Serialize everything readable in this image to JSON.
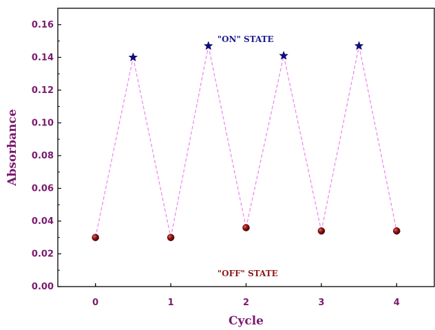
{
  "chart_data": {
    "type": "scatter",
    "xlabel": "Cycle",
    "ylabel": "Absorbance",
    "xlim": [
      -0.5,
      4.5
    ],
    "ylim": [
      0,
      0.17
    ],
    "xticks": [
      "0",
      "1",
      "2",
      "3",
      "4"
    ],
    "yticks": [
      "0.00",
      "0.02",
      "0.04",
      "0.06",
      "0.08",
      "0.10",
      "0.12",
      "0.14",
      "0.16"
    ],
    "grid": false,
    "series": [
      {
        "name": "\"ON\" STATE",
        "marker": "star",
        "color": "#0d0d8a",
        "x": [
          0.5,
          1.5,
          2.5,
          3.5
        ],
        "y": [
          0.14,
          0.147,
          0.141,
          0.147
        ]
      },
      {
        "name": "\"OFF\" STATE",
        "marker": "sphere",
        "color": "#8b1010",
        "x": [
          0,
          1,
          2,
          3,
          4
        ],
        "y": [
          0.03,
          0.03,
          0.036,
          0.034,
          0.034
        ]
      }
    ],
    "connector": {
      "style": "dashed",
      "color": "#ee82ee",
      "x": [
        0,
        0.5,
        1,
        1.5,
        2,
        2.5,
        3,
        3.5,
        4
      ],
      "y": [
        0.03,
        0.14,
        0.03,
        0.147,
        0.036,
        0.141,
        0.034,
        0.147,
        0.034
      ]
    },
    "annotations": [
      {
        "text": "\"ON\" STATE",
        "x": 1.62,
        "y": 0.151,
        "color": "#1a1a8c"
      },
      {
        "text": "\"OFF\" STATE",
        "x": 1.62,
        "y": 0.008,
        "color": "#8b1a1a"
      }
    ],
    "colors": {
      "axis_text": "#7a1a6e",
      "on_marker": "#0d0d8a",
      "off_marker": "#8b1010",
      "connector": "#ee82ee"
    }
  }
}
